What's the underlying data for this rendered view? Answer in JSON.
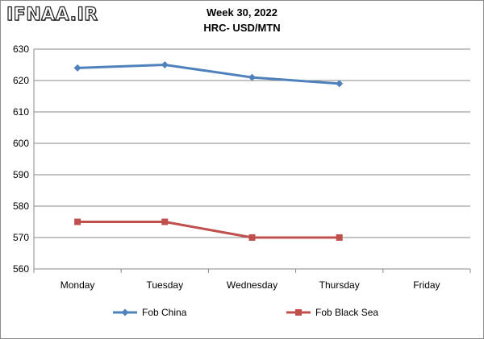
{
  "watermark": "IFNAA.IR",
  "chart_data": {
    "type": "line",
    "title": "Week 30, 2022",
    "subtitle": "HRC- USD/MTN",
    "categories": [
      "Monday",
      "Tuesday",
      "Wednesday",
      "Thursday",
      "Friday"
    ],
    "series": [
      {
        "name": "Fob China",
        "color": "#4f81bd",
        "marker": "diamond",
        "values": [
          624,
          625,
          621,
          619,
          null
        ]
      },
      {
        "name": "Fob Black Sea",
        "color": "#c0504d",
        "marker": "square",
        "values": [
          575,
          575,
          570,
          570,
          null
        ]
      }
    ],
    "ylim": [
      560,
      630
    ],
    "yticks": [
      560,
      570,
      580,
      590,
      600,
      610,
      620,
      630
    ],
    "grid": "horizontal",
    "legend": "bottom"
  }
}
